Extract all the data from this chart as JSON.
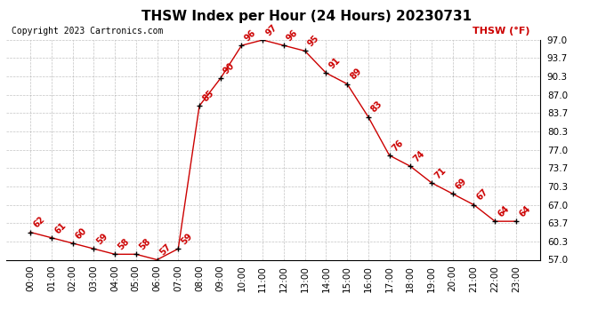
{
  "title": "THSW Index per Hour (24 Hours) 20230731",
  "copyright": "Copyright 2023 Cartronics.com",
  "legend_label": "THSW (°F)",
  "hours": [
    "00:00",
    "01:00",
    "02:00",
    "03:00",
    "04:00",
    "05:00",
    "06:00",
    "07:00",
    "08:00",
    "09:00",
    "10:00",
    "11:00",
    "12:00",
    "13:00",
    "14:00",
    "15:00",
    "16:00",
    "17:00",
    "18:00",
    "19:00",
    "20:00",
    "21:00",
    "22:00",
    "23:00"
  ],
  "values": [
    62,
    61,
    60,
    59,
    58,
    58,
    57,
    59,
    85,
    90,
    96,
    97,
    96,
    95,
    91,
    89,
    83,
    76,
    74,
    71,
    69,
    67,
    64,
    64
  ],
  "ylim": [
    57.0,
    97.0
  ],
  "yticks": [
    57.0,
    60.3,
    63.7,
    67.0,
    70.3,
    73.7,
    77.0,
    80.3,
    83.7,
    87.0,
    90.3,
    93.7,
    97.0
  ],
  "line_color": "#cc0000",
  "marker_color": "#000000",
  "label_color": "#cc0000",
  "title_color": "#000000",
  "bg_color": "#ffffff",
  "grid_color": "#aaaaaa",
  "copyright_color": "#000000",
  "legend_color": "#cc0000",
  "title_fontsize": 11,
  "copyright_fontsize": 7,
  "label_fontsize": 7,
  "tick_fontsize": 7.5,
  "legend_fontsize": 8
}
